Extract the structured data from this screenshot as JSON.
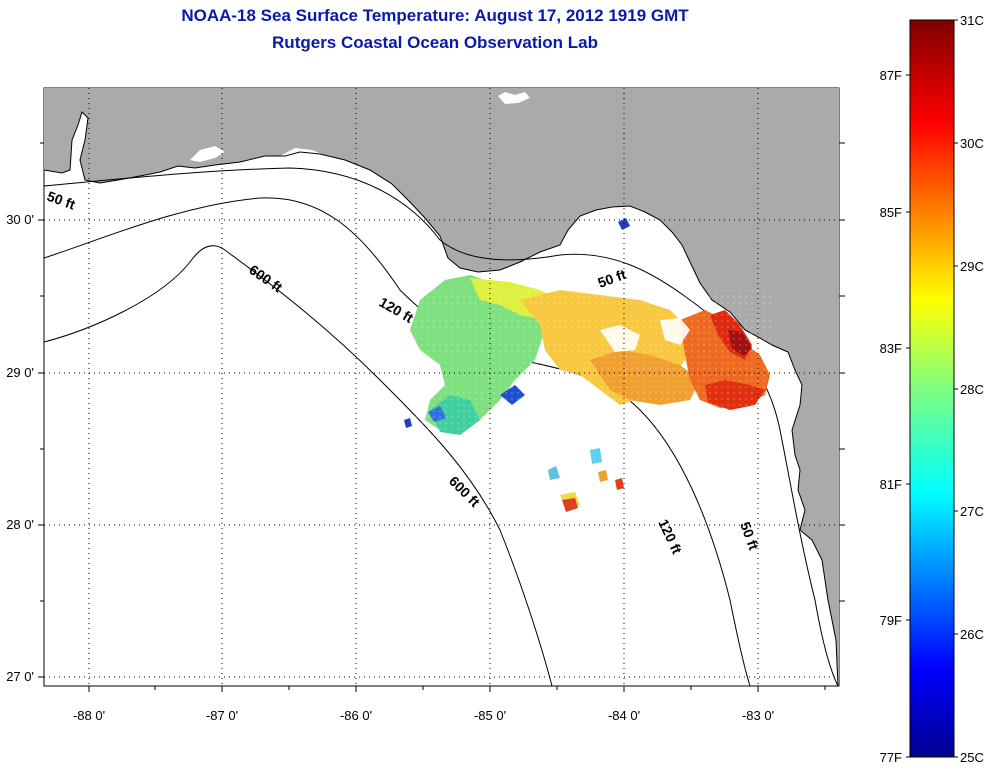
{
  "title": {
    "line1": "NOAA-18 Sea Surface Temperature:  August 17, 2012 1919 GMT",
    "line2": "Rutgers Coastal Ocean Observation Lab"
  },
  "map": {
    "lon_labels": [
      "-88 0'",
      "-87 0'",
      "-86 0'",
      "-85 0'",
      "-84 0'",
      "-83 0'"
    ],
    "lat_labels": [
      "30 0'",
      "29 0'",
      "28 0'",
      "27 0'"
    ],
    "contour_labels": [
      "50 ft",
      "600 ft",
      "120 ft",
      "50 ft",
      "600 ft",
      "120 ft",
      "50 ft"
    ],
    "colors": {
      "land": "#aaaaaa",
      "water": "#ffffff",
      "grid": "#000000"
    }
  },
  "colorbar": {
    "celsius": [
      "31C",
      "30C",
      "29C",
      "28C",
      "27C",
      "26C",
      "25C"
    ],
    "fahrenheit": [
      "87F",
      "85F",
      "83F",
      "81F",
      "79F",
      "77F"
    ]
  }
}
